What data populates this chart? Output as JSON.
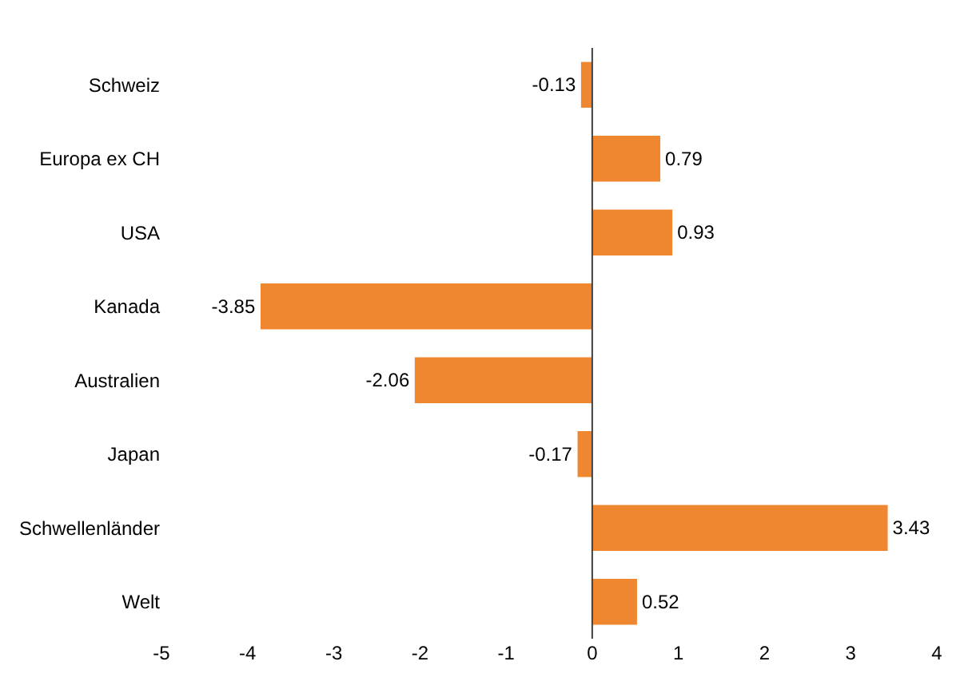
{
  "chart_data": {
    "type": "bar",
    "orientation": "horizontal",
    "categories": [
      "Schweiz",
      "Europa ex CH",
      "USA",
      "Kanada",
      "Australien",
      "Japan",
      "Schwellenländer",
      "Welt"
    ],
    "values": [
      -0.13,
      0.79,
      0.93,
      -3.85,
      -2.06,
      -0.17,
      3.43,
      0.52
    ],
    "color": "#ef8730",
    "xlim": [
      -5,
      4
    ],
    "xticks": [
      -5,
      -4,
      -3,
      -2,
      -1,
      0,
      1,
      2,
      3,
      4
    ],
    "ref_lines": [
      {
        "axis": "x",
        "value": 0,
        "color": "#404040"
      }
    ],
    "data_labels": true,
    "grid": false,
    "legend": false
  }
}
